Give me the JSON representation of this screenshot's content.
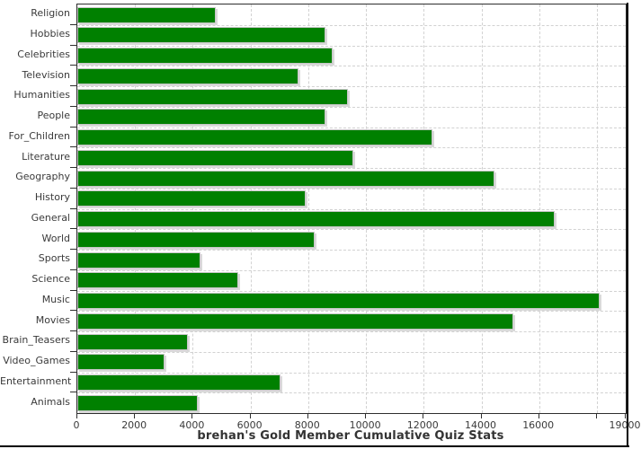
{
  "chart_data": {
    "type": "bar",
    "orientation": "horizontal",
    "title": "brehan's Gold Member Cumulative Quiz Stats",
    "categories": [
      "Religion",
      "Hobbies",
      "Celebrities",
      "Television",
      "Humanities",
      "People",
      "For_Children",
      "Literature",
      "Geography",
      "History",
      "General",
      "World",
      "Sports",
      "Science",
      "Music",
      "Movies",
      "Brain_Teasers",
      "Video_Games",
      "Entertainment",
      "Animals"
    ],
    "values": [
      4780,
      8590,
      8830,
      7650,
      9380,
      8600,
      12300,
      9550,
      14440,
      7910,
      16550,
      8230,
      4270,
      5580,
      18080,
      15100,
      3830,
      3010,
      7050,
      4180
    ],
    "xlim": [
      0,
      19000
    ],
    "xticks": [
      {
        "value": 0,
        "label": "0"
      },
      {
        "value": 2000,
        "label": "2000"
      },
      {
        "value": 4000,
        "label": "4000"
      },
      {
        "value": 6000,
        "label": "6000"
      },
      {
        "value": 8000,
        "label": "8000"
      },
      {
        "value": 10000,
        "label": "10000"
      },
      {
        "value": 12000,
        "label": "12000"
      },
      {
        "value": 14000,
        "label": "14000"
      },
      {
        "value": 16000,
        "label": "16000"
      },
      {
        "value": 18000,
        "label": ""
      },
      {
        "value": 19000,
        "label": "19000"
      }
    ],
    "grid": true,
    "legend": false,
    "bar_color": "#008000",
    "bar_border_color": "#c6c6c6",
    "grid_color": "#d2d2d2",
    "axis_color": "#2e2e2e",
    "text_color": "#3a3a3a"
  }
}
